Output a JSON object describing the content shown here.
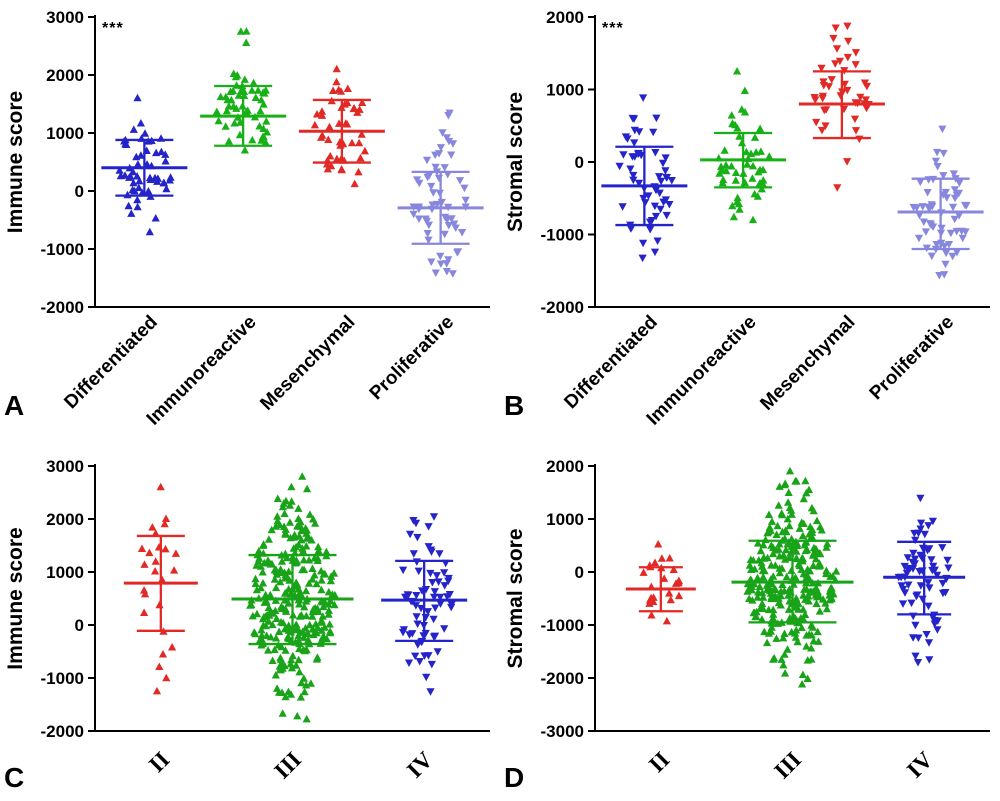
{
  "chart_data": [
    {
      "type": "scatter",
      "letter": "A",
      "ylabel": "Immune score",
      "annotation": "***",
      "ylim": [
        -2000,
        3000
      ],
      "yticks": [
        3000,
        2000,
        1000,
        0,
        -1000,
        -2000
      ],
      "categories": [
        "Differentiated",
        "Immunoreactive",
        "Mesenchymal",
        "Proliferative"
      ],
      "legend_position": "none",
      "grid": false,
      "groups": [
        {
          "name": "Differentiated",
          "color": "#2424c8",
          "marker": "up",
          "n": 55,
          "mean": 400,
          "sd_upper": 880,
          "sd_lower": -80,
          "points_min": -710,
          "points_max": 1600,
          "spread": 28,
          "seed": 101
        },
        {
          "name": "Immunoreactive",
          "color": "#17b117",
          "marker": "up",
          "n": 55,
          "mean": 1290,
          "sd_upper": 1810,
          "sd_lower": 780,
          "points_min": 700,
          "points_max": 2750,
          "spread": 28,
          "seed": 102
        },
        {
          "name": "Mesenchymal",
          "color": "#e12a26",
          "marker": "up",
          "n": 46,
          "mean": 1030,
          "sd_upper": 1570,
          "sd_lower": 490,
          "points_min": 120,
          "points_max": 2100,
          "spread": 28,
          "seed": 103
        },
        {
          "name": "Proliferative",
          "color": "#8787dd",
          "marker": "down",
          "n": 60,
          "mean": -290,
          "sd_upper": 330,
          "sd_lower": -910,
          "points_min": -1420,
          "points_max": 1350,
          "spread": 28,
          "seed": 104
        }
      ]
    },
    {
      "type": "scatter",
      "letter": "B",
      "ylabel": "Stromal score",
      "annotation": "***",
      "ylim": [
        -2000,
        2000
      ],
      "yticks": [
        2000,
        1000,
        0,
        -1000,
        -2000
      ],
      "categories": [
        "Differentiated",
        "Immunoreactive",
        "Mesenchymal",
        "Proliferative"
      ],
      "legend_position": "none",
      "grid": false,
      "groups": [
        {
          "name": "Differentiated",
          "color": "#2424c8",
          "marker": "down",
          "n": 55,
          "mean": -330,
          "sd_upper": 210,
          "sd_lower": -870,
          "points_min": -1320,
          "points_max": 890,
          "spread": 28,
          "seed": 201
        },
        {
          "name": "Immunoreactive",
          "color": "#17b117",
          "marker": "up",
          "n": 55,
          "mean": 30,
          "sd_upper": 400,
          "sd_lower": -350,
          "points_min": -800,
          "points_max": 1250,
          "spread": 28,
          "seed": 202
        },
        {
          "name": "Mesenchymal",
          "color": "#e12a26",
          "marker": "down",
          "n": 46,
          "mean": 800,
          "sd_upper": 1250,
          "sd_lower": 330,
          "points_min": -350,
          "points_max": 1880,
          "spread": 28,
          "seed": 203
        },
        {
          "name": "Proliferative",
          "color": "#8787dd",
          "marker": "down",
          "n": 60,
          "mean": -690,
          "sd_upper": -230,
          "sd_lower": -1200,
          "points_min": -1560,
          "points_max": 460,
          "spread": 28,
          "seed": 204
        }
      ]
    },
    {
      "type": "scatter",
      "letter": "C",
      "ylabel": "Immune score",
      "annotation": "",
      "ylim": [
        -2000,
        3000
      ],
      "yticks": [
        3000,
        2000,
        1000,
        0,
        -1000,
        -2000
      ],
      "categories": [
        "II",
        "III",
        "IV"
      ],
      "legend_position": "none",
      "grid": false,
      "groups": [
        {
          "name": "II",
          "color": "#e12a26",
          "marker": "up",
          "n": 25,
          "mean": 790,
          "sd_upper": 1680,
          "sd_lower": -110,
          "points_min": -1250,
          "points_max": 2600,
          "spread": 22,
          "seed": 301
        },
        {
          "name": "III",
          "color": "#19a319",
          "marker": "up",
          "n": 300,
          "mean": 490,
          "sd_upper": 1320,
          "sd_lower": -360,
          "points_min": -1780,
          "points_max": 2800,
          "spread": 46,
          "seed": 302
        },
        {
          "name": "IV",
          "color": "#2424c8",
          "marker": "down",
          "n": 70,
          "mean": 470,
          "sd_upper": 1210,
          "sd_lower": -300,
          "points_min": -1250,
          "points_max": 2050,
          "spread": 28,
          "seed": 303
        }
      ]
    },
    {
      "type": "scatter",
      "letter": "D",
      "ylabel": "Stromal score",
      "annotation": "",
      "ylim": [
        -3000,
        2000
      ],
      "yticks": [
        2000,
        1000,
        0,
        -1000,
        -2000,
        -3000
      ],
      "categories": [
        "II",
        "III",
        "IV"
      ],
      "legend_position": "none",
      "grid": false,
      "groups": [
        {
          "name": "II",
          "color": "#e12a26",
          "marker": "up",
          "n": 25,
          "mean": -320,
          "sd_upper": 90,
          "sd_lower": -740,
          "points_min": -930,
          "points_max": 520,
          "spread": 20,
          "seed": 401
        },
        {
          "name": "III",
          "color": "#19a319",
          "marker": "up",
          "n": 300,
          "mean": -190,
          "sd_upper": 590,
          "sd_lower": -950,
          "points_min": -2120,
          "points_max": 1900,
          "spread": 46,
          "seed": 402
        },
        {
          "name": "IV",
          "color": "#2424c8",
          "marker": "down",
          "n": 70,
          "mean": -100,
          "sd_upper": 570,
          "sd_lower": -800,
          "points_min": -1700,
          "points_max": 1400,
          "spread": 26,
          "seed": 403
        }
      ]
    }
  ]
}
